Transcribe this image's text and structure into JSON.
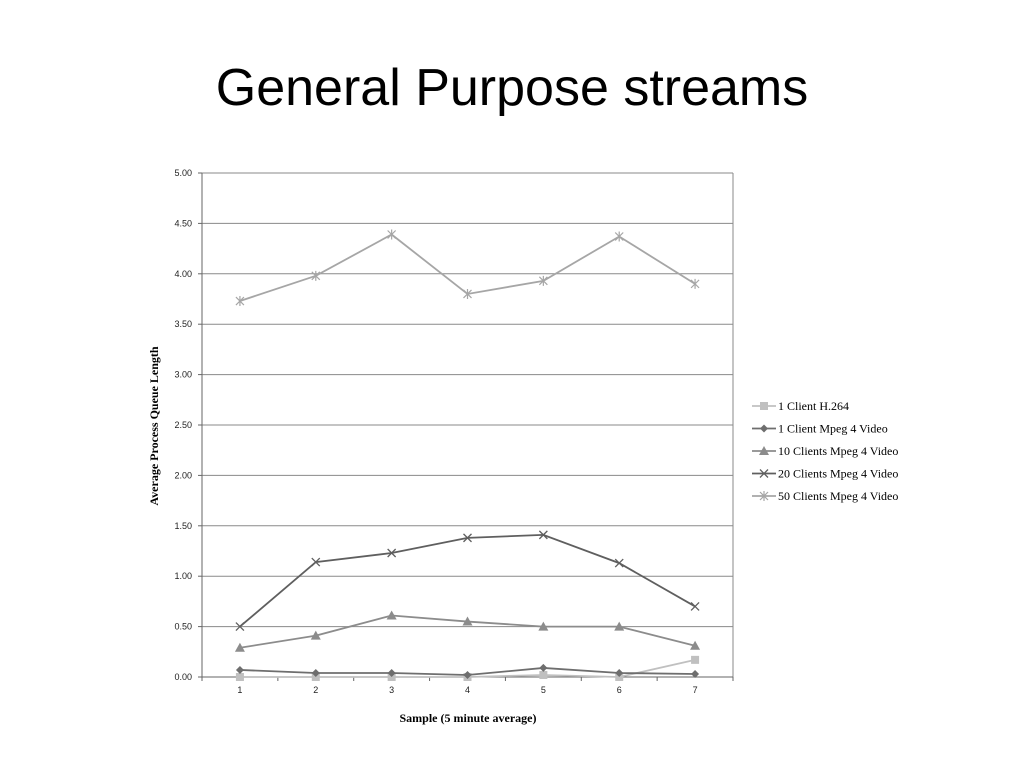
{
  "slide": {
    "title": "General Purpose streams"
  },
  "chart_data": {
    "type": "line",
    "title": "",
    "xlabel": "Sample (5 minute average)",
    "ylabel": "Average Process Queue Length",
    "categories": [
      "1",
      "2",
      "3",
      "4",
      "5",
      "6",
      "7"
    ],
    "ylim": [
      0,
      5
    ],
    "yticks": [
      "0.00",
      "0.50",
      "1.00",
      "1.50",
      "2.00",
      "2.50",
      "3.00",
      "3.50",
      "4.00",
      "4.50",
      "5.00"
    ],
    "grid": true,
    "legend": "right",
    "series": [
      {
        "name": "1 Client H.264",
        "marker": "square",
        "color": "#c0c0c0",
        "values": [
          0.0,
          0.0,
          0.0,
          0.0,
          0.02,
          0.0,
          0.17
        ]
      },
      {
        "name": "1 Client Mpeg 4 Video",
        "marker": "diamond",
        "color": "#6e6e6e",
        "values": [
          0.07,
          0.04,
          0.04,
          0.02,
          0.09,
          0.04,
          0.03
        ]
      },
      {
        "name": "10 Clients Mpeg 4 Video",
        "marker": "triangle",
        "color": "#8c8c8c",
        "values": [
          0.29,
          0.41,
          0.61,
          0.55,
          0.5,
          0.5,
          0.31
        ]
      },
      {
        "name": "20 Clients Mpeg 4 Video",
        "marker": "x",
        "color": "#5f5f5f",
        "values": [
          0.5,
          1.14,
          1.23,
          1.38,
          1.41,
          1.13,
          0.7
        ]
      },
      {
        "name": "50 Clients Mpeg 4 Video",
        "marker": "star",
        "color": "#a6a6a6",
        "values": [
          3.73,
          3.98,
          4.39,
          3.8,
          3.93,
          4.37,
          3.9
        ]
      }
    ]
  }
}
